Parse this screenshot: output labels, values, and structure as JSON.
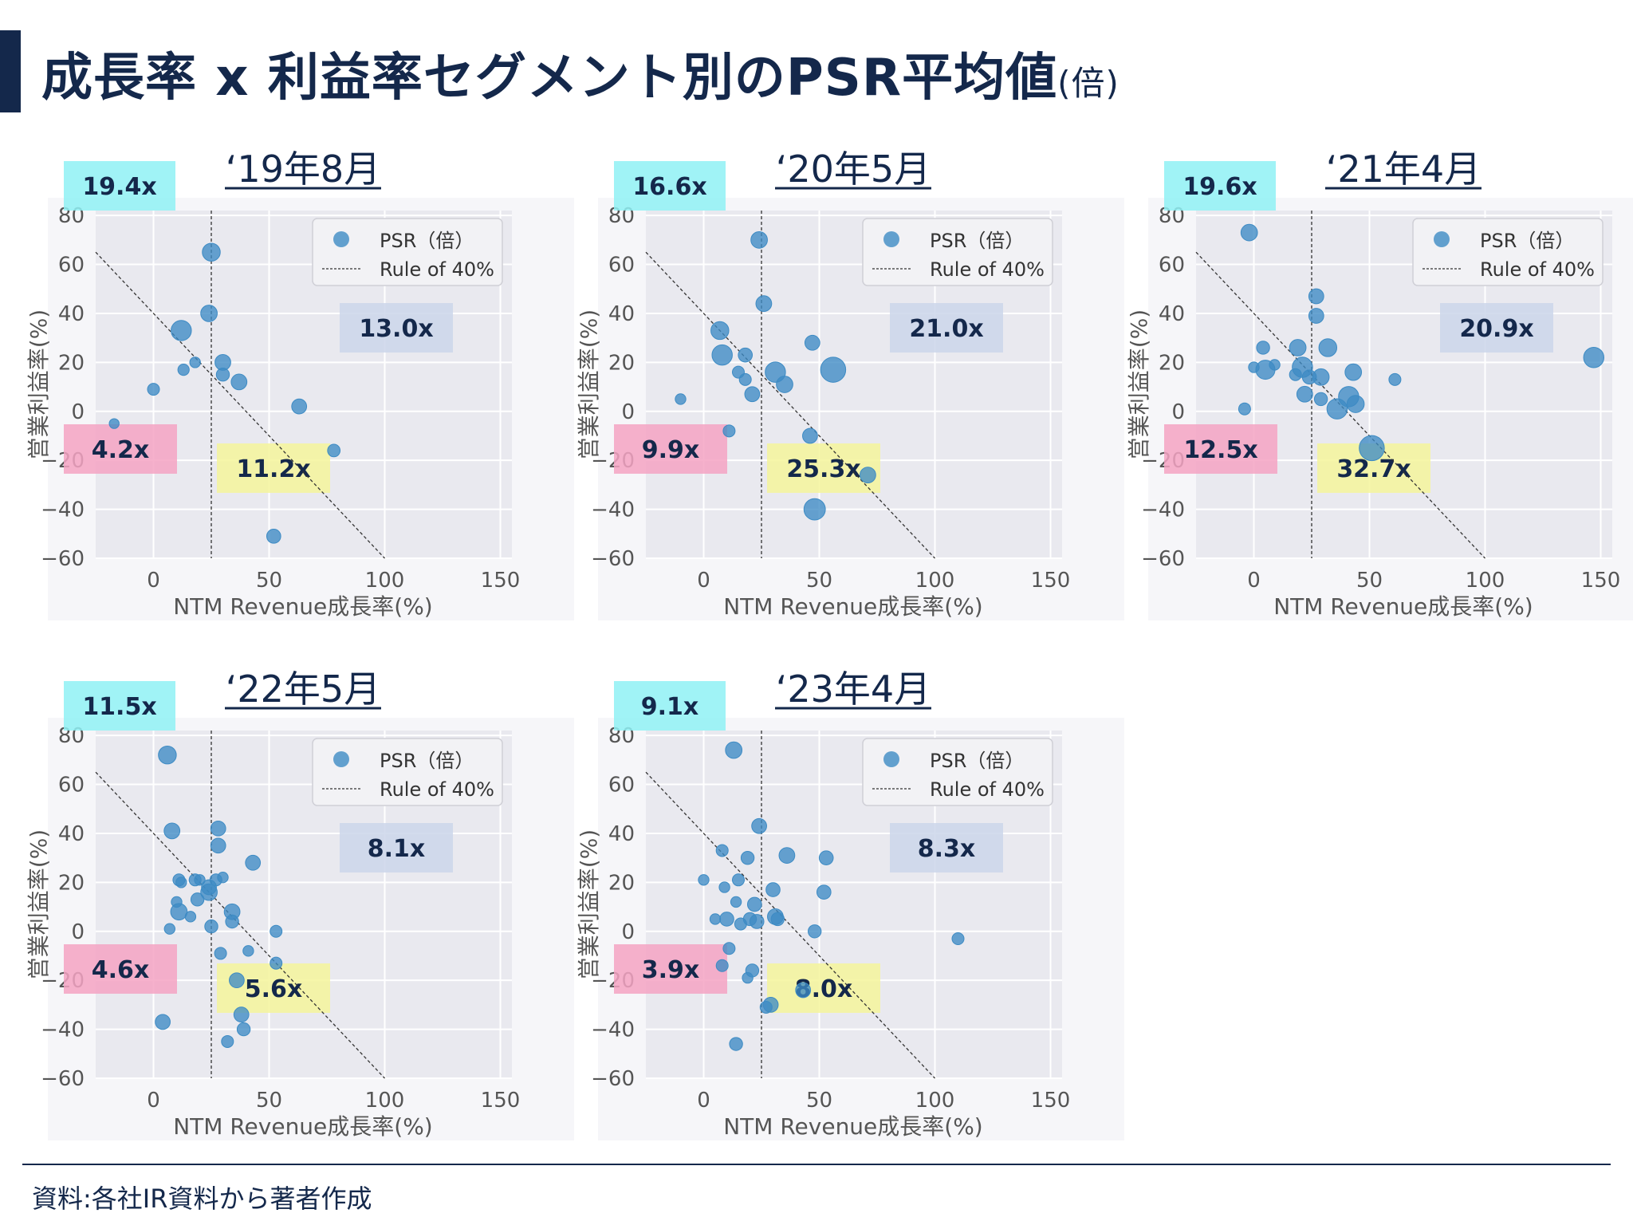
{
  "header": {
    "title": "成長率 x 利益率セグメント別のPSR平均値",
    "title_unit": "(倍)"
  },
  "footer": {
    "source": "資料:各社IR資料から著者作成"
  },
  "colors": {
    "point": "#3d8bc4",
    "plot_bg": "#e9e9ef",
    "panel_bg": "#f6f6f9",
    "cyan_box": "#8ff1f4",
    "blue_box": "#cbd6ea",
    "pink_box": "#f5a3c3",
    "yellow_box": "#f4f49b"
  },
  "chart_data": [
    {
      "type": "scatter",
      "title": "‘19年8月",
      "xlabel": "NTM Revenue成長率(%)",
      "ylabel": "営業利益率(%)",
      "xlim": [
        -25,
        155
      ],
      "ylim": [
        -60,
        82
      ],
      "xticks": [
        0,
        50,
        100,
        150
      ],
      "yticks": [
        80,
        60,
        40,
        20,
        0,
        -20,
        -40,
        -60
      ],
      "legend": [
        "PSR（倍）",
        "Rule of 40%"
      ],
      "legend_position": "top-right",
      "grid": true,
      "vline_x": 25,
      "rule_line": [
        [
          -25,
          65
        ],
        [
          100,
          -60
        ]
      ],
      "segments": {
        "top_left": "19.4x",
        "top_right": "13.0x",
        "bottom_left": "4.2x",
        "bottom_right": "11.2x"
      },
      "points": [
        {
          "x": -17,
          "y": -5,
          "psr": 1.5
        },
        {
          "x": 0,
          "y": 9,
          "psr": 3
        },
        {
          "x": 12,
          "y": 33,
          "psr": 14
        },
        {
          "x": 13,
          "y": 17,
          "psr": 2.5
        },
        {
          "x": 18,
          "y": 20,
          "psr": 2
        },
        {
          "x": 25,
          "y": 65,
          "psr": 10
        },
        {
          "x": 24,
          "y": 40,
          "psr": 8
        },
        {
          "x": 30,
          "y": 20,
          "psr": 7
        },
        {
          "x": 30,
          "y": 15,
          "psr": 4
        },
        {
          "x": 37,
          "y": 12,
          "psr": 7
        },
        {
          "x": 63,
          "y": 2,
          "psr": 6
        },
        {
          "x": 78,
          "y": -16,
          "psr": 3.5
        },
        {
          "x": 52,
          "y": -51,
          "psr": 5
        }
      ]
    },
    {
      "type": "scatter",
      "title": "‘20年5月",
      "xlabel": "NTM Revenue成長率(%)",
      "ylabel": "営業利益率(%)",
      "xlim": [
        -25,
        155
      ],
      "ylim": [
        -60,
        82
      ],
      "xticks": [
        0,
        50,
        100,
        150
      ],
      "yticks": [
        80,
        60,
        40,
        20,
        0,
        -20,
        -40,
        -60
      ],
      "legend": [
        "PSR（倍）",
        "Rule of 40%"
      ],
      "legend_position": "top-right",
      "grid": true,
      "vline_x": 25,
      "rule_line": [
        [
          -25,
          65
        ],
        [
          100,
          -60
        ]
      ],
      "segments": {
        "top_left": "16.6x",
        "top_right": "21.0x",
        "bottom_left": "9.9x",
        "bottom_right": "25.3x"
      },
      "points": [
        {
          "x": 24,
          "y": 70,
          "psr": 8
        },
        {
          "x": 26,
          "y": 44,
          "psr": 7
        },
        {
          "x": 7,
          "y": 33,
          "psr": 10
        },
        {
          "x": 8,
          "y": 23,
          "psr": 14
        },
        {
          "x": 18,
          "y": 23,
          "psr": 5
        },
        {
          "x": 15,
          "y": 16,
          "psr": 3
        },
        {
          "x": 18,
          "y": 13,
          "psr": 3
        },
        {
          "x": 21,
          "y": 7,
          "psr": 6
        },
        {
          "x": 31,
          "y": 16,
          "psr": 14
        },
        {
          "x": 35,
          "y": 11,
          "psr": 8
        },
        {
          "x": 47,
          "y": 28,
          "psr": 6
        },
        {
          "x": 56,
          "y": 17,
          "psr": 24
        },
        {
          "x": -10,
          "y": 5,
          "psr": 2
        },
        {
          "x": 11,
          "y": -8,
          "psr": 3
        },
        {
          "x": 46,
          "y": -10,
          "psr": 6
        },
        {
          "x": 71,
          "y": -26,
          "psr": 7
        },
        {
          "x": 48,
          "y": -40,
          "psr": 16
        }
      ]
    },
    {
      "type": "scatter",
      "title": "‘21年4月",
      "xlabel": "NTM Revenue成長率(%)",
      "ylabel": "営業利益率(%)",
      "xlim": [
        -25,
        155
      ],
      "ylim": [
        -60,
        82
      ],
      "xticks": [
        0,
        50,
        100,
        150
      ],
      "yticks": [
        80,
        60,
        40,
        20,
        0,
        -20,
        -40,
        -60
      ],
      "legend": [
        "PSR（倍）",
        "Rule of 40%"
      ],
      "legend_position": "top-right",
      "grid": true,
      "vline_x": 25,
      "rule_line": [
        [
          -25,
          65
        ],
        [
          100,
          -60
        ]
      ],
      "segments": {
        "top_left": "19.6x",
        "top_right": "20.9x",
        "bottom_left": "12.5x",
        "bottom_right": "32.7x"
      },
      "points": [
        {
          "x": -2,
          "y": 73,
          "psr": 8
        },
        {
          "x": 27,
          "y": 47,
          "psr": 6
        },
        {
          "x": 27,
          "y": 39,
          "psr": 6
        },
        {
          "x": 4,
          "y": 26,
          "psr": 4
        },
        {
          "x": 0,
          "y": 18,
          "psr": 2
        },
        {
          "x": 5,
          "y": 17,
          "psr": 12
        },
        {
          "x": 9,
          "y": 19,
          "psr": 2
        },
        {
          "x": 19,
          "y": 26,
          "psr": 8
        },
        {
          "x": 21,
          "y": 18,
          "psr": 14
        },
        {
          "x": 18,
          "y": 15,
          "psr": 3
        },
        {
          "x": 24,
          "y": 14,
          "psr": 5
        },
        {
          "x": 29,
          "y": 14,
          "psr": 8
        },
        {
          "x": 32,
          "y": 26,
          "psr": 10
        },
        {
          "x": 22,
          "y": 7,
          "psr": 7
        },
        {
          "x": 29,
          "y": 5,
          "psr": 4
        },
        {
          "x": 36,
          "y": 1,
          "psr": 14
        },
        {
          "x": 41,
          "y": 6,
          "psr": 14
        },
        {
          "x": 44,
          "y": 3,
          "psr": 9
        },
        {
          "x": 43,
          "y": 16,
          "psr": 8
        },
        {
          "x": -4,
          "y": 1,
          "psr": 3
        },
        {
          "x": 51,
          "y": -15,
          "psr": 24
        },
        {
          "x": 61,
          "y": 13,
          "psr": 3
        },
        {
          "x": 147,
          "y": 22,
          "psr": 14
        }
      ]
    },
    {
      "type": "scatter",
      "title": "‘22年5月",
      "xlabel": "NTM Revenue成長率(%)",
      "ylabel": "営業利益率(%)",
      "xlim": [
        -25,
        155
      ],
      "ylim": [
        -60,
        82
      ],
      "xticks": [
        0,
        50,
        100,
        150
      ],
      "yticks": [
        80,
        60,
        40,
        20,
        0,
        -20,
        -40,
        -60
      ],
      "legend": [
        "PSR（倍）",
        "Rule of 40%"
      ],
      "legend_position": "top-right",
      "grid": true,
      "vline_x": 25,
      "rule_line": [
        [
          -25,
          65
        ],
        [
          100,
          -60
        ]
      ],
      "segments": {
        "top_left": "11.5x",
        "top_right": "8.1x",
        "bottom_left": "4.6x",
        "bottom_right": "5.6x"
      },
      "points": [
        {
          "x": 6,
          "y": 72,
          "psr": 10
        },
        {
          "x": 8,
          "y": 41,
          "psr": 7
        },
        {
          "x": 28,
          "y": 42,
          "psr": 6
        },
        {
          "x": 28,
          "y": 35,
          "psr": 6
        },
        {
          "x": 43,
          "y": 28,
          "psr": 6
        },
        {
          "x": 11,
          "y": 21,
          "psr": 3
        },
        {
          "x": 12,
          "y": 20,
          "psr": 2
        },
        {
          "x": 18,
          "y": 21,
          "psr": 3
        },
        {
          "x": 20,
          "y": 21,
          "psr": 2
        },
        {
          "x": 24,
          "y": 18,
          "psr": 6
        },
        {
          "x": 24,
          "y": 16,
          "psr": 8
        },
        {
          "x": 27,
          "y": 21,
          "psr": 3
        },
        {
          "x": 30,
          "y": 22,
          "psr": 2
        },
        {
          "x": 10,
          "y": 12,
          "psr": 2
        },
        {
          "x": 19,
          "y": 13,
          "psr": 4
        },
        {
          "x": 11,
          "y": 8,
          "psr": 8
        },
        {
          "x": 16,
          "y": 6,
          "psr": 2
        },
        {
          "x": 7,
          "y": 1,
          "psr": 2
        },
        {
          "x": 25,
          "y": 2,
          "psr": 4
        },
        {
          "x": 34,
          "y": 8,
          "psr": 7
        },
        {
          "x": 34,
          "y": 4,
          "psr": 4
        },
        {
          "x": 53,
          "y": 0,
          "psr": 3
        },
        {
          "x": 29,
          "y": -9,
          "psr": 3
        },
        {
          "x": 41,
          "y": -8,
          "psr": 2
        },
        {
          "x": 53,
          "y": -13,
          "psr": 3
        },
        {
          "x": 36,
          "y": -20,
          "psr": 6
        },
        {
          "x": 38,
          "y": -34,
          "psr": 6
        },
        {
          "x": 39,
          "y": -40,
          "psr": 4
        },
        {
          "x": 32,
          "y": -45,
          "psr": 3
        },
        {
          "x": 4,
          "y": -37,
          "psr": 6
        }
      ]
    },
    {
      "type": "scatter",
      "title": "‘23年4月",
      "xlabel": "NTM Revenue成長率(%)",
      "ylabel": "営業利益率(%)",
      "xlim": [
        -25,
        155
      ],
      "ylim": [
        -60,
        82
      ],
      "xticks": [
        0,
        50,
        100,
        150
      ],
      "yticks": [
        80,
        60,
        40,
        20,
        0,
        -20,
        -40,
        -60
      ],
      "legend": [
        "PSR（倍）",
        "Rule of 40%"
      ],
      "legend_position": "top-right",
      "grid": true,
      "vline_x": 25,
      "rule_line": [
        [
          -25,
          65
        ],
        [
          100,
          -60
        ]
      ],
      "segments": {
        "top_left": "9.1x",
        "top_right": "8.3x",
        "bottom_left": "3.9x",
        "bottom_right": "8.0x"
      },
      "points": [
        {
          "x": 13,
          "y": 74,
          "psr": 8
        },
        {
          "x": 24,
          "y": 43,
          "psr": 6
        },
        {
          "x": 8,
          "y": 33,
          "psr": 3
        },
        {
          "x": 19,
          "y": 30,
          "psr": 4
        },
        {
          "x": 36,
          "y": 31,
          "psr": 7
        },
        {
          "x": 53,
          "y": 30,
          "psr": 5
        },
        {
          "x": 0,
          "y": 21,
          "psr": 2
        },
        {
          "x": 9,
          "y": 18,
          "psr": 2
        },
        {
          "x": 15,
          "y": 21,
          "psr": 3
        },
        {
          "x": 30,
          "y": 17,
          "psr": 5
        },
        {
          "x": 52,
          "y": 16,
          "psr": 5
        },
        {
          "x": 14,
          "y": 12,
          "psr": 2
        },
        {
          "x": 22,
          "y": 11,
          "psr": 5
        },
        {
          "x": 5,
          "y": 5,
          "psr": 2
        },
        {
          "x": 10,
          "y": 5,
          "psr": 5
        },
        {
          "x": 16,
          "y": 3,
          "psr": 3
        },
        {
          "x": 20,
          "y": 5,
          "psr": 4
        },
        {
          "x": 23,
          "y": 4,
          "psr": 5
        },
        {
          "x": 31,
          "y": 6,
          "psr": 7
        },
        {
          "x": 32,
          "y": 5,
          "psr": 4
        },
        {
          "x": 48,
          "y": 0,
          "psr": 4
        },
        {
          "x": 110,
          "y": -3,
          "psr": 3
        },
        {
          "x": 11,
          "y": -7,
          "psr": 3
        },
        {
          "x": 8,
          "y": -14,
          "psr": 3
        },
        {
          "x": 21,
          "y": -16,
          "psr": 4
        },
        {
          "x": 19,
          "y": -19,
          "psr": 2
        },
        {
          "x": 43,
          "y": -24,
          "psr": 6
        },
        {
          "x": 29,
          "y": -30,
          "psr": 6
        },
        {
          "x": 27,
          "y": -31,
          "psr": 3
        },
        {
          "x": 14,
          "y": -46,
          "psr": 4
        }
      ]
    }
  ]
}
